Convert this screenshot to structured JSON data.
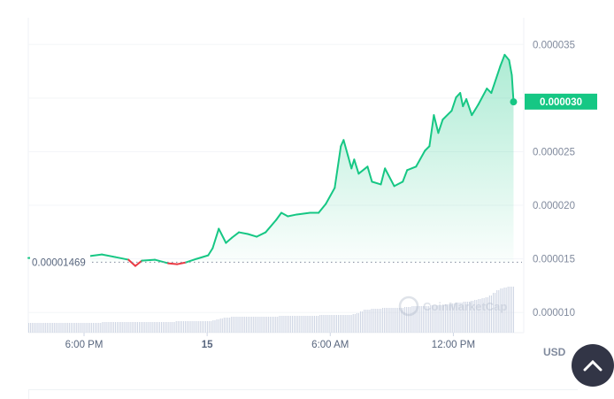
{
  "chart_data": {
    "type": "area",
    "y_axis_ticks": [
      "0.000035",
      "0.000030",
      "0.000025",
      "0.000020",
      "0.000015",
      "0.000010"
    ],
    "ylim": [
      8.2e-06,
      3.75e-05
    ],
    "x_axis_ticks": [
      {
        "label": "6:00 PM",
        "t": "14 18:00",
        "bold": false
      },
      {
        "label": "15",
        "t": "15 00:00",
        "bold": true
      },
      {
        "label": "6:00 AM",
        "t": "15 06:00",
        "bold": false
      },
      {
        "label": "12:00 PM",
        "t": "15 12:00",
        "bold": false
      }
    ],
    "xlim": [
      "14 15:17",
      "15 15:00"
    ],
    "grid": true,
    "reference_price": 1.469e-05,
    "reference_label": "0.00001469",
    "current_price_label": "0.000030",
    "currency": "USD",
    "watermark": "CoinMarketCap",
    "colors": {
      "up": "#16c784",
      "down": "#ea3943",
      "tag": "#16c784",
      "volume": "#cfd6e4"
    },
    "series": [
      {
        "t": [
          "14 15:17",
          "14 16:29",
          "14 18:13",
          "14 18:52",
          "14 19:31",
          "14 20:10",
          "14 20:30",
          "14 20:49",
          "14 21:27",
          "14 22:06",
          "14 22:32",
          "14 22:58",
          "14 23:29",
          "15 00:03",
          "15 00:16",
          "15 00:34",
          "15 00:55",
          "15 01:13",
          "15 01:33",
          "15 01:59",
          "15 02:25",
          "15 02:51",
          "15 03:22",
          "15 03:37",
          "15 03:56",
          "15 04:22",
          "15 05:01",
          "15 05:26",
          "15 05:47",
          "15 06:13",
          "15 06:31",
          "15 06:39",
          "15 06:52",
          "15 07:02",
          "15 07:10",
          "15 07:23",
          "15 07:49",
          "15 08:02",
          "15 08:28",
          "15 08:40",
          "15 09:07",
          "15 09:32",
          "15 09:45",
          "15 10:11",
          "15 10:37",
          "15 10:50",
          "15 11:03",
          "15 11:16",
          "15 11:29",
          "15 11:55",
          "15 12:08",
          "15 12:20",
          "15 12:28",
          "15 12:38",
          "15 12:54",
          "15 13:13",
          "15 13:38",
          "15 13:51",
          "15 14:17",
          "15 14:30",
          "15 14:43",
          "15 14:51",
          "15 14:56"
        ],
        "price": [
          15.08,
          15.17,
          15.25,
          15.41,
          15.17,
          14.92,
          14.34,
          14.83,
          14.92,
          14.59,
          14.5,
          14.67,
          15.0,
          15.33,
          15.99,
          17.81,
          16.49,
          16.99,
          17.48,
          17.32,
          17.07,
          17.48,
          18.64,
          19.3,
          18.97,
          19.14,
          19.3,
          19.3,
          20.13,
          21.62,
          25.51,
          26.09,
          24.6,
          23.44,
          24.27,
          22.95,
          23.61,
          22.2,
          21.95,
          23.44,
          21.79,
          22.2,
          23.28,
          23.61,
          25.1,
          25.51,
          28.41,
          26.75,
          28.0,
          28.82,
          30.07,
          30.48,
          29.24,
          29.9,
          28.41,
          29.4,
          30.89,
          30.48,
          32.96,
          34.04,
          33.54,
          32.14,
          29.65
        ],
        "price_unit": "1e-6 USD"
      }
    ],
    "volume_relative": [
      11,
      11,
      11,
      11,
      11,
      11,
      11,
      11,
      11,
      11,
      11,
      11,
      11,
      11,
      11,
      11,
      11,
      11,
      11,
      11,
      12,
      12,
      12,
      12,
      12,
      12,
      12,
      12,
      12,
      12,
      12,
      12,
      12,
      12,
      12,
      12,
      12,
      12,
      12,
      12,
      13,
      13,
      13,
      13,
      13,
      13,
      13,
      13,
      13,
      13,
      14,
      15,
      16,
      17,
      17,
      18,
      18,
      18,
      18,
      18,
      18,
      18,
      18,
      18,
      18,
      18,
      18,
      18,
      19,
      19,
      19,
      19,
      19,
      19,
      19,
      19,
      19,
      19,
      19,
      20,
      20,
      20,
      20,
      20,
      20,
      20,
      20,
      20,
      21,
      22,
      24,
      26,
      26,
      27,
      27,
      27,
      28,
      28,
      28,
      28,
      28,
      28,
      29,
      29,
      30,
      30,
      30,
      30,
      30,
      31,
      31,
      31,
      31,
      32,
      32,
      33,
      34,
      34,
      35,
      35,
      36,
      37,
      38,
      39,
      40,
      42,
      45,
      48,
      50,
      51,
      52,
      52
    ]
  },
  "nav": {
    "scroll_top_label": "scroll to top"
  }
}
